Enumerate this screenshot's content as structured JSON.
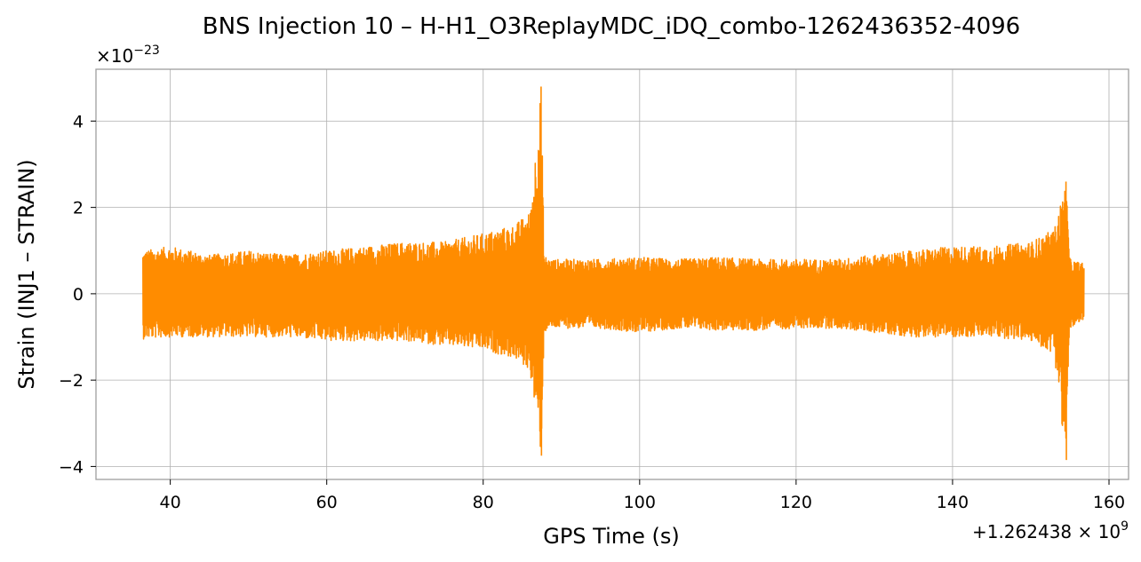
{
  "chart_data": {
    "type": "line",
    "title": "BNS Injection 10 – H-H1_O3ReplayMDC_iDQ_combo-1262436352-4096",
    "xlabel": "GPS Time (s)",
    "ylabel": "Strain (INJ1 – STRAIN)",
    "x_offset_label": "+1.262438 × 10^9",
    "x_offset_label_parts": {
      "prefix": "+1.262438 × 10",
      "exp": "9"
    },
    "y_multiplier_label_parts": {
      "prefix": "×10",
      "exp": "−23"
    },
    "xlim": [
      30.5,
      162.5
    ],
    "ylim": [
      -4.3,
      5.2
    ],
    "x_ticks": [
      40,
      60,
      80,
      100,
      120,
      140,
      160
    ],
    "x_tick_labels": [
      "40",
      "60",
      "80",
      "100",
      "120",
      "140",
      "160"
    ],
    "y_ticks": [
      -4,
      -2,
      0,
      2,
      4
    ],
    "y_tick_labels": [
      "−4",
      "−2",
      "0",
      "2",
      "4"
    ],
    "grid": true,
    "line_color": "#ff8c00",
    "x_start": 36.5,
    "x_end": 156.8,
    "envelope": {
      "x": [
        36.5,
        40,
        45,
        50,
        55,
        60,
        65,
        70,
        75,
        80,
        84,
        86,
        87.4,
        87.8,
        88.5,
        90,
        95,
        100,
        105,
        110,
        115,
        120,
        125,
        130,
        135,
        140,
        145,
        150,
        153,
        154.5,
        155,
        156.8
      ],
      "y": [
        1.0,
        1.1,
        0.9,
        1.0,
        0.9,
        1.0,
        1.1,
        1.2,
        1.2,
        1.4,
        1.6,
        1.9,
        4.8,
        0.9,
        0.8,
        0.8,
        0.8,
        0.85,
        0.8,
        0.85,
        0.8,
        0.8,
        0.8,
        0.9,
        1.0,
        1.1,
        1.1,
        1.2,
        1.5,
        2.6,
        0.8,
        0.7
      ]
    },
    "envelope_lower": {
      "x": [
        36.5,
        40,
        45,
        50,
        55,
        60,
        65,
        70,
        75,
        80,
        84,
        86,
        87.4,
        87.8,
        88.5,
        90,
        95,
        100,
        105,
        110,
        115,
        120,
        125,
        130,
        135,
        140,
        145,
        150,
        153,
        154.5,
        155,
        156.8
      ],
      "y": [
        -1.05,
        -1.0,
        -1.0,
        -1.0,
        -1.0,
        -1.1,
        -1.1,
        -1.1,
        -1.2,
        -1.3,
        -1.5,
        -1.8,
        -3.75,
        -0.9,
        -0.8,
        -0.8,
        -0.8,
        -0.9,
        -0.8,
        -0.85,
        -0.85,
        -0.8,
        -0.8,
        -0.9,
        -1.0,
        -1.0,
        -1.0,
        -1.1,
        -1.4,
        -3.85,
        -0.8,
        -0.7
      ]
    }
  }
}
